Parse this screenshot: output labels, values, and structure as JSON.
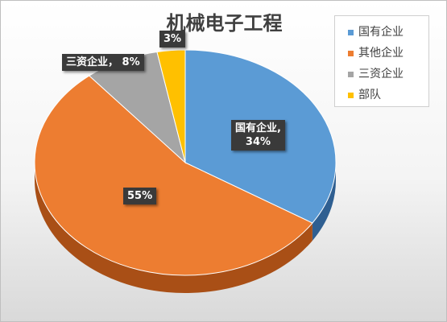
{
  "chart_data": {
    "type": "pie",
    "title": "机械电子工程",
    "legend_position": "right",
    "categories": [
      "国有企业",
      "其他企业",
      "三资企业",
      "部队"
    ],
    "values": [
      34,
      55,
      8,
      3
    ],
    "value_labels": [
      "34%",
      "55%",
      "8%",
      "3%"
    ],
    "data_labels": [
      "国有企业，34%",
      "55%",
      "三资企业，8%",
      "3%"
    ],
    "colors": [
      "#5b9bd5",
      "#ed7d31",
      "#a5a5a5",
      "#ffc000"
    ],
    "side_colors": [
      "#2f5f91",
      "#a94f16",
      "#6e6e6e",
      "#b38600"
    ]
  }
}
